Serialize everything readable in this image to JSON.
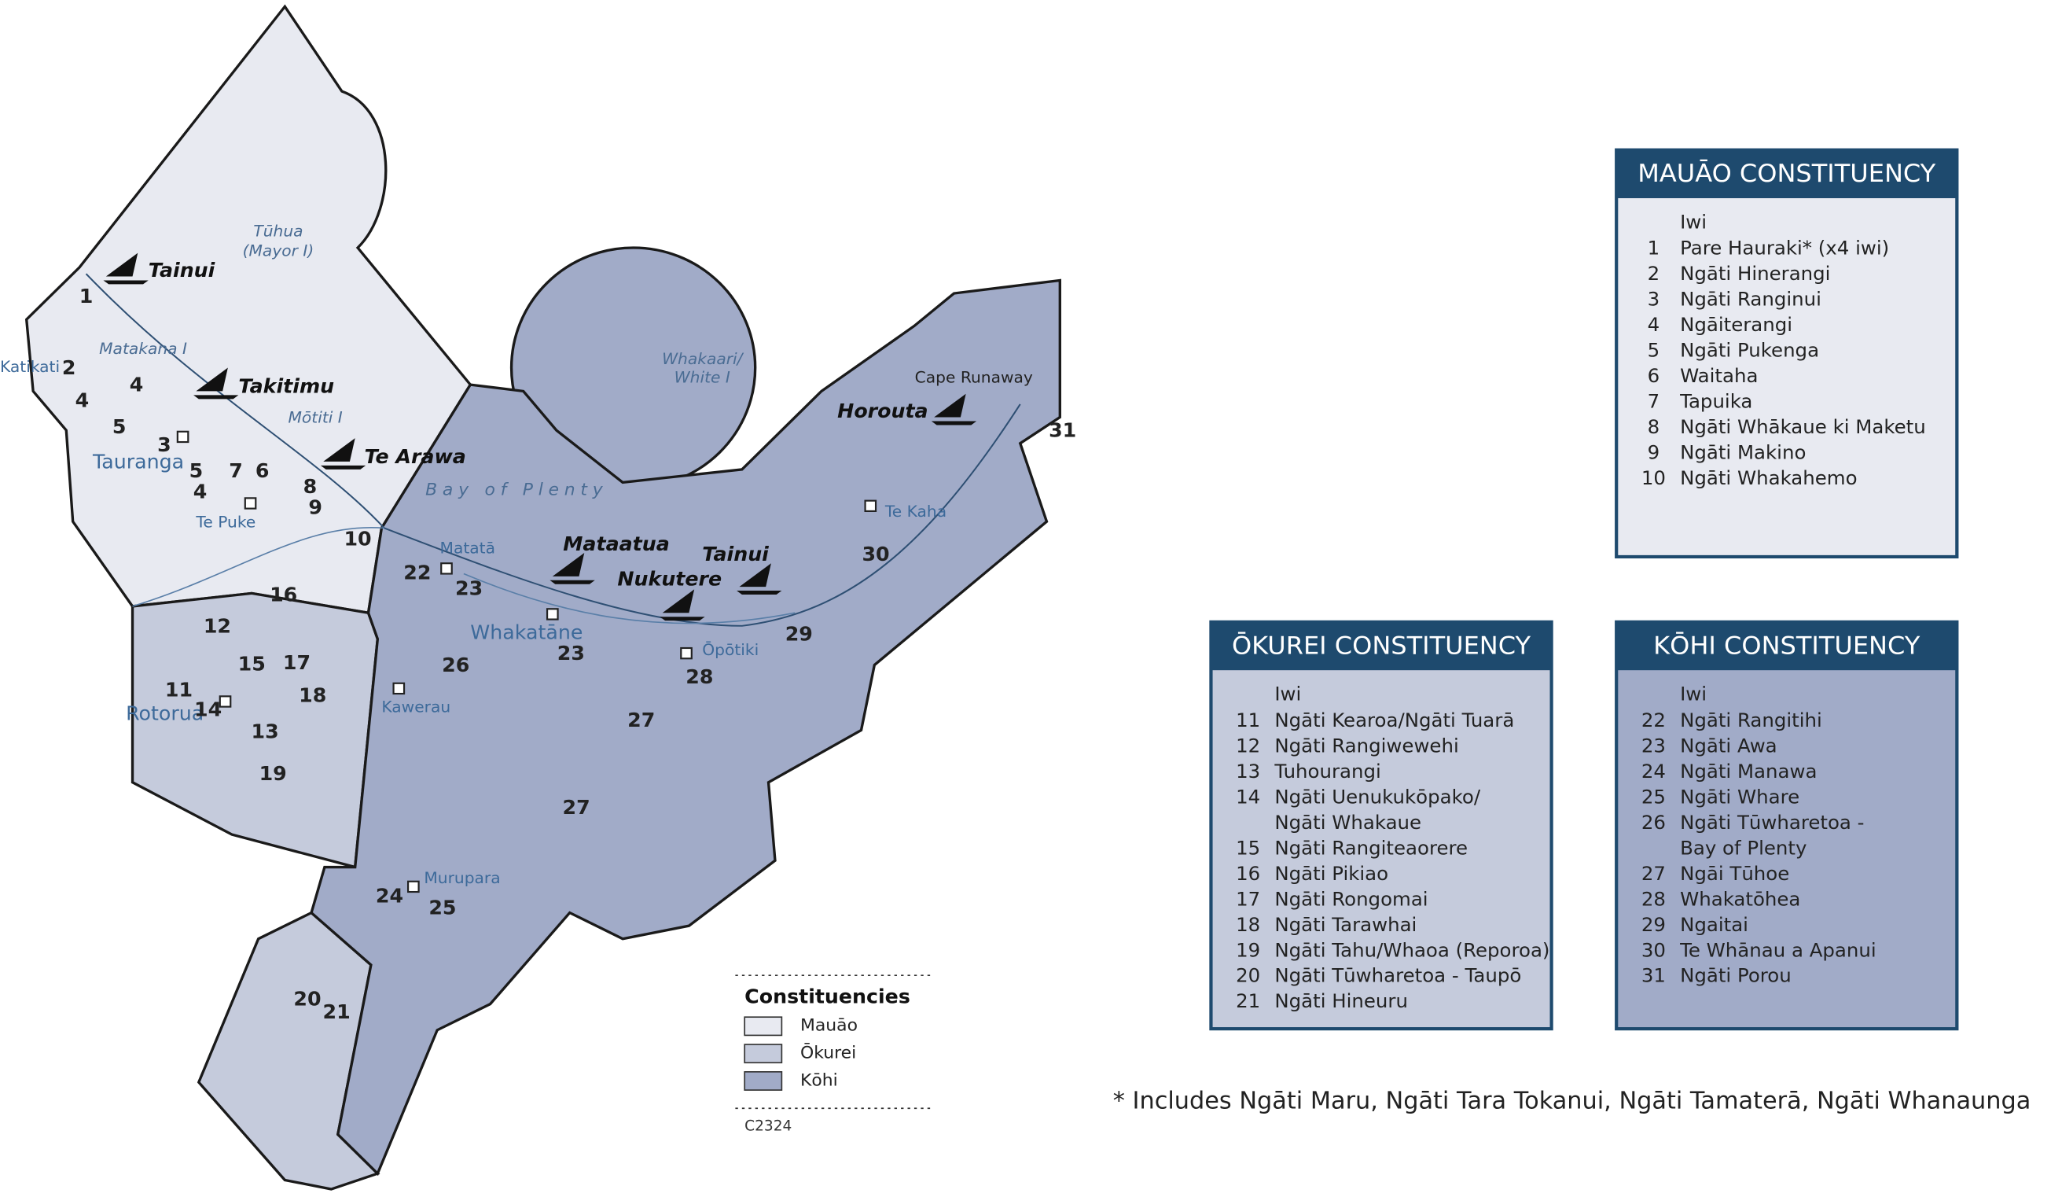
{
  "map": {
    "labels": [
      "Tainui",
      "Takitimu",
      "Te Arawa",
      "Mataatua",
      "Tainui",
      "Nukutere",
      "Horouta",
      "Tūhua",
      "(Mayor I)",
      "Matakana I",
      "Mōtiti I",
      "Whakaari/",
      "White I",
      "Bay of Plenty",
      "Cape Runaway",
      "Katikati",
      "Tauranga",
      "Te Puke",
      "Matatā",
      "Whakatāne",
      "Ōpōtiki",
      "Te Kaha",
      "Kawerau",
      "Rotorua",
      "Murupara",
      "1",
      "2",
      "4",
      "4",
      "5",
      "3",
      "5",
      "4",
      "7",
      "6",
      "8",
      "9",
      "10",
      "22",
      "23",
      "16",
      "12",
      "15",
      "17",
      "11",
      "14",
      "18",
      "13",
      "19",
      "26",
      "23",
      "28",
      "27",
      "29",
      "30",
      "31",
      "27",
      "24",
      "25",
      "20",
      "21"
    ]
  },
  "legend": {
    "title": "Constituencies",
    "items": [
      {
        "label": "Mauāo",
        "color": "#e8eaf1"
      },
      {
        "label": "Ōkurei",
        "color": "#c5cbdc"
      },
      {
        "label": "Kōhi",
        "color": "#a1abc8"
      }
    ],
    "code": "C2324"
  },
  "panels": [
    {
      "title": "MAUĀO CONSTITUENCY",
      "column": "Iwi",
      "color": "#e8eaf1",
      "rows": [
        {
          "number": "1",
          "name": "Pare Hauraki* (x4 iwi)"
        },
        {
          "number": "2",
          "name": "Ngāti Hinerangi"
        },
        {
          "number": "3",
          "name": "Ngāti Ranginui"
        },
        {
          "number": "4",
          "name": "Ngāiterangi"
        },
        {
          "number": "5",
          "name": "Ngāti Pukenga"
        },
        {
          "number": "6",
          "name": "Waitaha"
        },
        {
          "number": "7",
          "name": "Tapuika"
        },
        {
          "number": "8",
          "name": "Ngāti Whākaue ki Maketu"
        },
        {
          "number": "9",
          "name": "Ngāti Makino"
        },
        {
          "number": "10",
          "name": "Ngāti Whakahemo"
        }
      ]
    },
    {
      "title": "ŌKUREI CONSTITUENCY",
      "column": "Iwi",
      "color": "#c5cbdc",
      "rows": [
        {
          "number": "11",
          "name": "Ngāti Kearoa/Ngāti Tuarā"
        },
        {
          "number": "12",
          "name": "Ngāti Rangiwewehi"
        },
        {
          "number": "13",
          "name": "Tuhourangi"
        },
        {
          "number": "14",
          "name": "Ngāti Uenukukōpako/"
        },
        {
          "name": "Ngāti Whakaue"
        },
        {
          "number": "15",
          "name": "Ngāti Rangiteaorere"
        },
        {
          "number": "16",
          "name": "Ngāti Pikiao"
        },
        {
          "number": "17",
          "name": "Ngāti Rongomai"
        },
        {
          "number": "18",
          "name": "Ngāti Tarawhai"
        },
        {
          "number": "19",
          "name": "Ngāti Tahu/Whaoa (Reporoa)"
        },
        {
          "number": "20",
          "name": "Ngāti Tūwharetoa - Taupō"
        },
        {
          "number": "21",
          "name": "Ngāti Hineuru"
        }
      ]
    },
    {
      "title": "KŌHI CONSTITUENCY",
      "column": "Iwi",
      "color": "#a1abc8",
      "rows": [
        {
          "number": "22",
          "name": "Ngāti Rangitihi"
        },
        {
          "number": "23",
          "name": "Ngāti Awa"
        },
        {
          "number": "24",
          "name": "Ngāti Manawa"
        },
        {
          "number": "25",
          "name": "Ngāti Whare"
        },
        {
          "number": "26",
          "name": "Ngāti Tūwharetoa -"
        },
        {
          "name": "Bay of Plenty"
        },
        {
          "number": "27",
          "name": "Ngāi Tūhoe"
        },
        {
          "number": "28",
          "name": "Whakatōhea"
        },
        {
          "number": "29",
          "name": "Ngaitai"
        },
        {
          "number": "30",
          "name": "Te Whānau a Apanui"
        },
        {
          "number": "31",
          "name": "Ngāti Porou"
        }
      ]
    }
  ],
  "footnote": "* Includes  Ngāti Maru, Ngāti Tara Tokanui, Ngāti Tamaterā, Ngāti Whanaunga"
}
